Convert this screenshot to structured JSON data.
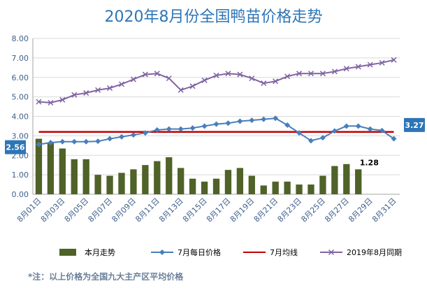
{
  "chart_data": {
    "type": "bar",
    "title": "2020年8月份全国鸭苗价格走势",
    "categories": [
      "8月01日",
      "8月02日",
      "8月03日",
      "8月04日",
      "8月05日",
      "8月06日",
      "8月07日",
      "8月08日",
      "8月09日",
      "8月10日",
      "8月11日",
      "8月12日",
      "8月13日",
      "8月14日",
      "8月15日",
      "8月16日",
      "8月17日",
      "8月18日",
      "8月19日",
      "8月20日",
      "8月21日",
      "8月22日",
      "8月23日",
      "8月24日",
      "8月25日",
      "8月26日",
      "8月27日",
      "8月28日",
      "8月29日",
      "8月30日",
      "8月31日"
    ],
    "x_tick_labels": [
      "8月01日",
      "8月03日",
      "8月05日",
      "8月07日",
      "8月09日",
      "8月11日",
      "8月13日",
      "8月15日",
      "8月17日",
      "8月19日",
      "8月21日",
      "8月23日",
      "8月25日",
      "8月27日",
      "8月29日",
      "8月31日"
    ],
    "y_tick_labels": [
      "0.00",
      "1.00",
      "2.00",
      "3.00",
      "4.00",
      "5.00",
      "6.00",
      "7.00",
      "8.00"
    ],
    "ylim": [
      0,
      8
    ],
    "grid": true,
    "legend_position": "bottom",
    "series": [
      {
        "name": "本月走势",
        "type": "bar",
        "color": "#4f6228",
        "values": [
          2.85,
          2.65,
          2.35,
          1.8,
          1.8,
          1.0,
          0.95,
          1.1,
          1.28,
          1.5,
          1.7,
          1.9,
          1.35,
          0.8,
          0.65,
          0.8,
          1.25,
          1.35,
          0.95,
          0.45,
          0.65,
          0.65,
          0.5,
          0.5,
          0.95,
          1.45,
          1.55,
          1.28,
          null,
          null,
          null
        ]
      },
      {
        "name": "7月每日价格",
        "type": "line",
        "color": "#4a7ebb",
        "marker": "diamond",
        "values": [
          2.56,
          2.65,
          2.7,
          2.7,
          2.7,
          2.72,
          2.85,
          2.95,
          3.05,
          3.15,
          3.3,
          3.35,
          3.35,
          3.4,
          3.5,
          3.6,
          3.65,
          3.75,
          3.8,
          3.85,
          3.9,
          3.55,
          3.15,
          2.75,
          2.9,
          3.25,
          3.5,
          3.5,
          3.35,
          3.27,
          2.85
        ]
      },
      {
        "name": "7月均线",
        "type": "line",
        "color": "#c00000",
        "values": [
          3.2,
          3.2,
          3.2,
          3.2,
          3.2,
          3.2,
          3.2,
          3.2,
          3.2,
          3.2,
          3.2,
          3.2,
          3.2,
          3.2,
          3.2,
          3.2,
          3.2,
          3.2,
          3.2,
          3.2,
          3.2,
          3.2,
          3.2,
          3.2,
          3.2,
          3.2,
          3.2,
          3.2,
          3.2,
          3.2,
          3.2
        ]
      },
      {
        "name": "2019年8月同期",
        "type": "line",
        "color": "#8064a2",
        "marker": "x",
        "values": [
          4.75,
          4.7,
          4.85,
          5.1,
          5.2,
          5.35,
          5.45,
          5.65,
          5.9,
          6.15,
          6.2,
          5.95,
          5.35,
          5.55,
          5.85,
          6.1,
          6.2,
          6.15,
          5.95,
          5.7,
          5.8,
          6.05,
          6.2,
          6.2,
          6.2,
          6.3,
          6.45,
          6.55,
          6.65,
          6.75,
          6.9
        ]
      }
    ],
    "annotations": [
      {
        "text": "2.56",
        "series": "7月每日价格",
        "index": 0,
        "style": "callout"
      },
      {
        "text": "3.27",
        "series": "7月每日价格",
        "index": 29,
        "style": "callout"
      },
      {
        "text": "1.28",
        "series": "本月走势",
        "index": 27,
        "style": "label"
      }
    ]
  },
  "footnote": "*注：以上价格为全国九大主产区平均价格"
}
